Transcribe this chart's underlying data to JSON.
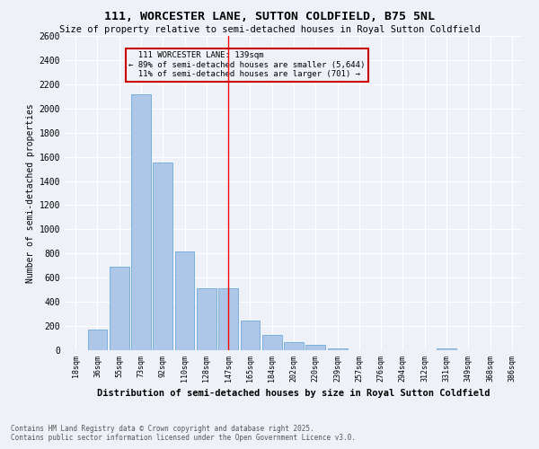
{
  "title": "111, WORCESTER LANE, SUTTON COLDFIELD, B75 5NL",
  "subtitle": "Size of property relative to semi-detached houses in Royal Sutton Coldfield",
  "xlabel": "Distribution of semi-detached houses by size in Royal Sutton Coldfield",
  "ylabel": "Number of semi-detached properties",
  "footer_line1": "Contains HM Land Registry data © Crown copyright and database right 2025.",
  "footer_line2": "Contains public sector information licensed under the Open Government Licence v3.0.",
  "categories": [
    "18sqm",
    "36sqm",
    "55sqm",
    "73sqm",
    "92sqm",
    "110sqm",
    "128sqm",
    "147sqm",
    "165sqm",
    "184sqm",
    "202sqm",
    "220sqm",
    "239sqm",
    "257sqm",
    "276sqm",
    "294sqm",
    "312sqm",
    "331sqm",
    "349sqm",
    "368sqm",
    "386sqm"
  ],
  "values": [
    0,
    170,
    690,
    2120,
    1550,
    820,
    510,
    510,
    245,
    125,
    65,
    45,
    15,
    0,
    0,
    0,
    0,
    15,
    0,
    0,
    0
  ],
  "bar_color": "#aec6e8",
  "bar_edge_color": "#5a9fd4",
  "red_line_x": 7,
  "ylim": [
    0,
    2600
  ],
  "yticks": [
    0,
    200,
    400,
    600,
    800,
    1000,
    1200,
    1400,
    1600,
    1800,
    2000,
    2200,
    2400,
    2600
  ],
  "property_size": "139sqm",
  "pct_smaller": 89,
  "count_smaller": 5644,
  "pct_larger": 11,
  "count_larger": 701,
  "annotation_title": "111 WORCESTER LANE: 139sqm",
  "background_color": "#eef2f8",
  "grid_color": "#ffffff",
  "box_color": "#cc0000"
}
